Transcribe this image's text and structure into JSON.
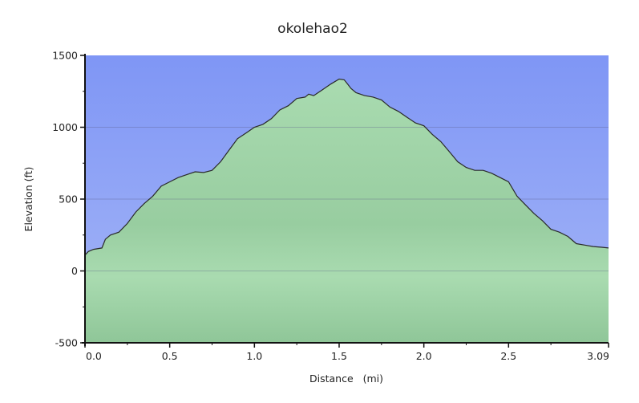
{
  "chart_data": {
    "type": "area",
    "title": "okolehao2",
    "xlabel": "Distance   (mi)",
    "ylabel": "Elevation (ft)",
    "xlim": [
      0,
      3.09
    ],
    "ylim": [
      -500,
      1500
    ],
    "x_ticks": [
      "0.0",
      "0.5",
      "1.0",
      "1.5",
      "2.0",
      "2.5",
      "3.09"
    ],
    "y_ticks": [
      "-500",
      "0",
      "500",
      "1000",
      "1500"
    ],
    "x_tick_values": [
      0.0,
      0.5,
      1.0,
      1.5,
      2.0,
      2.5,
      3.09
    ],
    "y_tick_values": [
      -500,
      0,
      500,
      1000,
      1500
    ],
    "grid": true,
    "colors": {
      "sky_top": "#7f96f5",
      "sky_bottom": "#a5b6f7",
      "fill_light": "#a9dbb0",
      "fill_dark": "#93c99c",
      "line": "#2a2a2a"
    },
    "series": [
      {
        "x": [
          0.0,
          0.02,
          0.05,
          0.1,
          0.12,
          0.15,
          0.2,
          0.25,
          0.3,
          0.35,
          0.4,
          0.45,
          0.5,
          0.55,
          0.6,
          0.65,
          0.7,
          0.75,
          0.8,
          0.85,
          0.9,
          0.95,
          1.0,
          1.05,
          1.1,
          1.15,
          1.2,
          1.25,
          1.3,
          1.32,
          1.35,
          1.4,
          1.45,
          1.5,
          1.53,
          1.55,
          1.57,
          1.6,
          1.65,
          1.7,
          1.75,
          1.8,
          1.85,
          1.9,
          1.95,
          2.0,
          2.05,
          2.1,
          2.15,
          2.2,
          2.25,
          2.3,
          2.35,
          2.4,
          2.45,
          2.5,
          2.55,
          2.6,
          2.65,
          2.7,
          2.75,
          2.8,
          2.85,
          2.9,
          2.95,
          3.0,
          3.05,
          3.09
        ],
        "y": [
          110,
          135,
          150,
          160,
          220,
          250,
          270,
          330,
          410,
          470,
          520,
          590,
          620,
          650,
          670,
          690,
          685,
          700,
          760,
          840,
          920,
          960,
          1000,
          1020,
          1060,
          1120,
          1150,
          1200,
          1210,
          1230,
          1220,
          1260,
          1300,
          1335,
          1330,
          1300,
          1270,
          1240,
          1220,
          1210,
          1190,
          1140,
          1110,
          1070,
          1030,
          1010,
          950,
          900,
          830,
          760,
          720,
          700,
          700,
          680,
          650,
          620,
          520,
          460,
          400,
          350,
          290,
          270,
          240,
          190,
          180,
          170,
          165,
          160
        ]
      }
    ]
  }
}
